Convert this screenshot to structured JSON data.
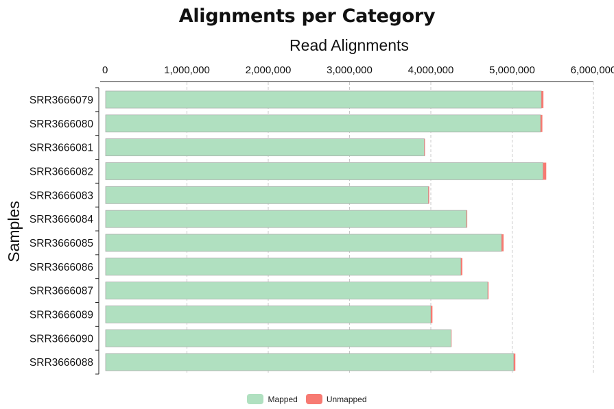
{
  "chart_data": {
    "type": "bar",
    "orientation": "horizontal",
    "stacked": true,
    "title": "Alignments per Category",
    "xlabel": "Read Alignments",
    "ylabel": "Samples",
    "xlim": [
      0,
      6000000
    ],
    "x_ticks": [
      0,
      1000000,
      2000000,
      3000000,
      4000000,
      5000000,
      6000000
    ],
    "x_tick_labels": [
      "0",
      "1,000,000",
      "2,000,000",
      "3,000,000",
      "4,000,000",
      "5,000,000",
      "6,000,000"
    ],
    "x_axis_position": "top",
    "grid": "vertical dashed",
    "legend_position": "bottom",
    "categories": [
      "SRR3666079",
      "SRR3666080",
      "SRR3666081",
      "SRR3666082",
      "SRR3666083",
      "SRR3666084",
      "SRR3666085",
      "SRR3666086",
      "SRR3666087",
      "SRR3666089",
      "SRR3666090",
      "SRR3666088"
    ],
    "series": [
      {
        "name": "Mapped",
        "color": "#b0e0c0",
        "values": [
          5360000,
          5350000,
          3920000,
          5380000,
          3970000,
          4440000,
          4870000,
          4370000,
          4700000,
          4000000,
          4250000,
          5020000
        ]
      },
      {
        "name": "Unmapped",
        "color": "#f77a72",
        "values": [
          25000,
          22000,
          8000,
          40000,
          10000,
          8000,
          25000,
          18000,
          10000,
          20000,
          5000,
          20000
        ]
      }
    ]
  }
}
